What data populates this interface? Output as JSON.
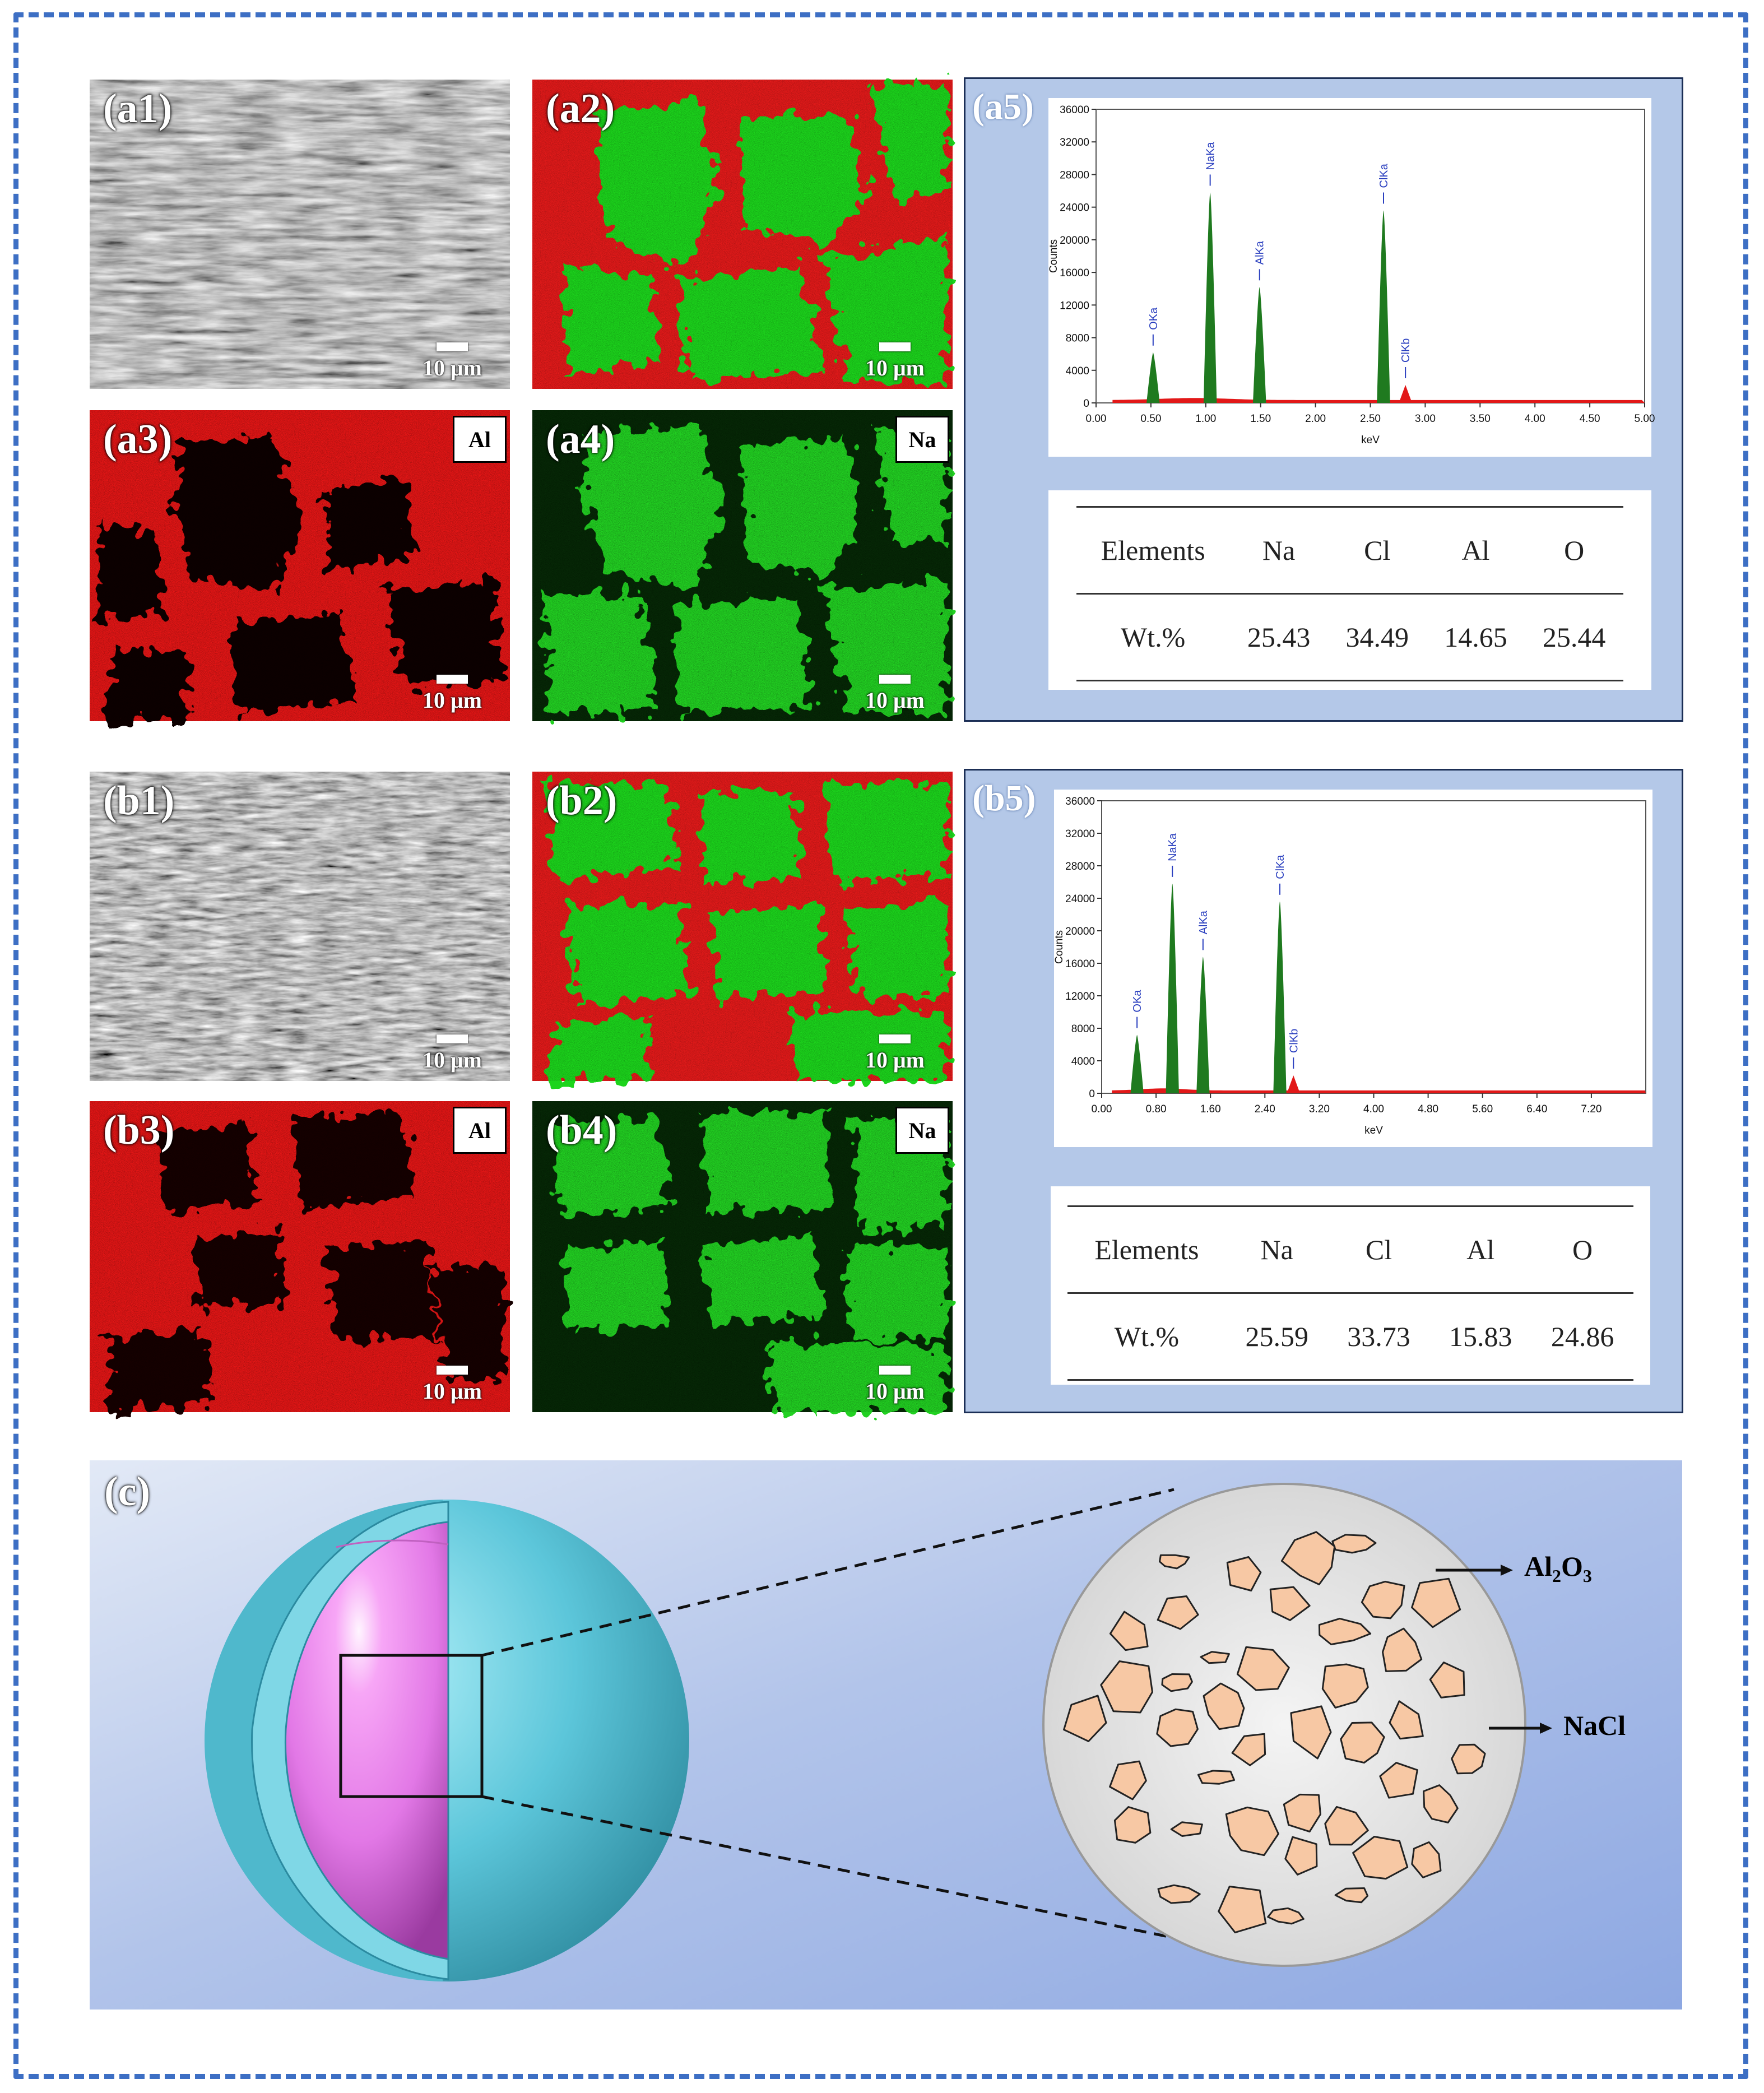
{
  "figure": {
    "panels": {
      "a1": {
        "label": "(a1)",
        "scale": "10 μm"
      },
      "a2": {
        "label": "(a2)",
        "scale": "10 μm"
      },
      "a3": {
        "label": "(a3)",
        "scale": "10 μm",
        "element": "Al"
      },
      "a4": {
        "label": "(a4)",
        "scale": "10 μm",
        "element": "Na"
      },
      "b1": {
        "label": "(b1)",
        "scale": "10 μm"
      },
      "b2": {
        "label": "(b2)",
        "scale": "10 μm"
      },
      "b3": {
        "label": "(b3)",
        "scale": "10 μm",
        "element": "Al"
      },
      "b4": {
        "label": "(b4)",
        "scale": "10 μm",
        "element": "Na"
      },
      "a5": {
        "label": "(a5)"
      },
      "b5": {
        "label": "(b5)"
      },
      "c": {
        "label": "(c)",
        "annotation_al2o3_main": "Al",
        "annotation_al2o3_sub1": "2",
        "annotation_al2o3_o": "O",
        "annotation_al2o3_sub2": "3",
        "annotation_nacl": "NaCl"
      }
    },
    "colors": {
      "frame": "#3d6fc4",
      "sem_gray": "#8a8a8a",
      "al_map": "#ff1a1a",
      "na_map": "#22dd22",
      "eds_peak": "#1f7a1f",
      "eds_box": "#b4c8e8",
      "shell": "#6cd3e6",
      "core": "#e77fe8",
      "particle": "#f7c8a4"
    }
  },
  "chart_data": [
    {
      "type": "line",
      "title": "",
      "xlabel": "keV",
      "ylabel": "Counts",
      "xlim": [
        0,
        5
      ],
      "ylim": [
        0,
        36000
      ],
      "xticks": [
        "0.00",
        "0.50",
        "1.00",
        "1.50",
        "2.00",
        "2.50",
        "3.00",
        "3.50",
        "4.00",
        "4.50",
        "5.00"
      ],
      "yticks": [
        "0",
        "4000",
        "8000",
        "12000",
        "16000",
        "20000",
        "24000",
        "28000",
        "32000",
        "36000"
      ],
      "peaks": [
        {
          "label": "OKa",
          "x": 0.52,
          "y": 6200
        },
        {
          "label": "NaKa",
          "x": 1.04,
          "y": 25800
        },
        {
          "label": "AlKa",
          "x": 1.49,
          "y": 14200
        },
        {
          "label": "ClKa",
          "x": 2.62,
          "y": 23600
        },
        {
          "label": "ClKb",
          "x": 2.82,
          "y": 2200
        }
      ]
    },
    {
      "type": "line",
      "title": "",
      "xlabel": "keV",
      "ylabel": "Counts",
      "xlim": [
        0,
        8
      ],
      "ylim": [
        0,
        36000
      ],
      "xticks": [
        "0.00",
        "0.80",
        "1.60",
        "2.40",
        "3.20",
        "4.00",
        "4.80",
        "5.60",
        "6.40",
        "7.20"
      ],
      "yticks": [
        "0",
        "4000",
        "8000",
        "12000",
        "16000",
        "20000",
        "24000",
        "28000",
        "32000",
        "36000"
      ],
      "peaks": [
        {
          "label": "OKa",
          "x": 0.52,
          "y": 7200
        },
        {
          "label": "NaKa",
          "x": 1.04,
          "y": 25800
        },
        {
          "label": "AlKa",
          "x": 1.49,
          "y": 16800
        },
        {
          "label": "ClKa",
          "x": 2.62,
          "y": 23600
        },
        {
          "label": "ClKb",
          "x": 2.82,
          "y": 2200
        }
      ]
    },
    {
      "type": "table",
      "header": [
        "Elements",
        "Na",
        "Cl",
        "Al",
        "O"
      ],
      "rows": [
        [
          "Wt.%",
          "25.43",
          "34.49",
          "14.65",
          "25.44"
        ]
      ]
    },
    {
      "type": "table",
      "header": [
        "Elements",
        "Na",
        "Cl",
        "Al",
        "O"
      ],
      "rows": [
        [
          "Wt.%",
          "25.59",
          "33.73",
          "15.83",
          "24.86"
        ]
      ]
    }
  ]
}
